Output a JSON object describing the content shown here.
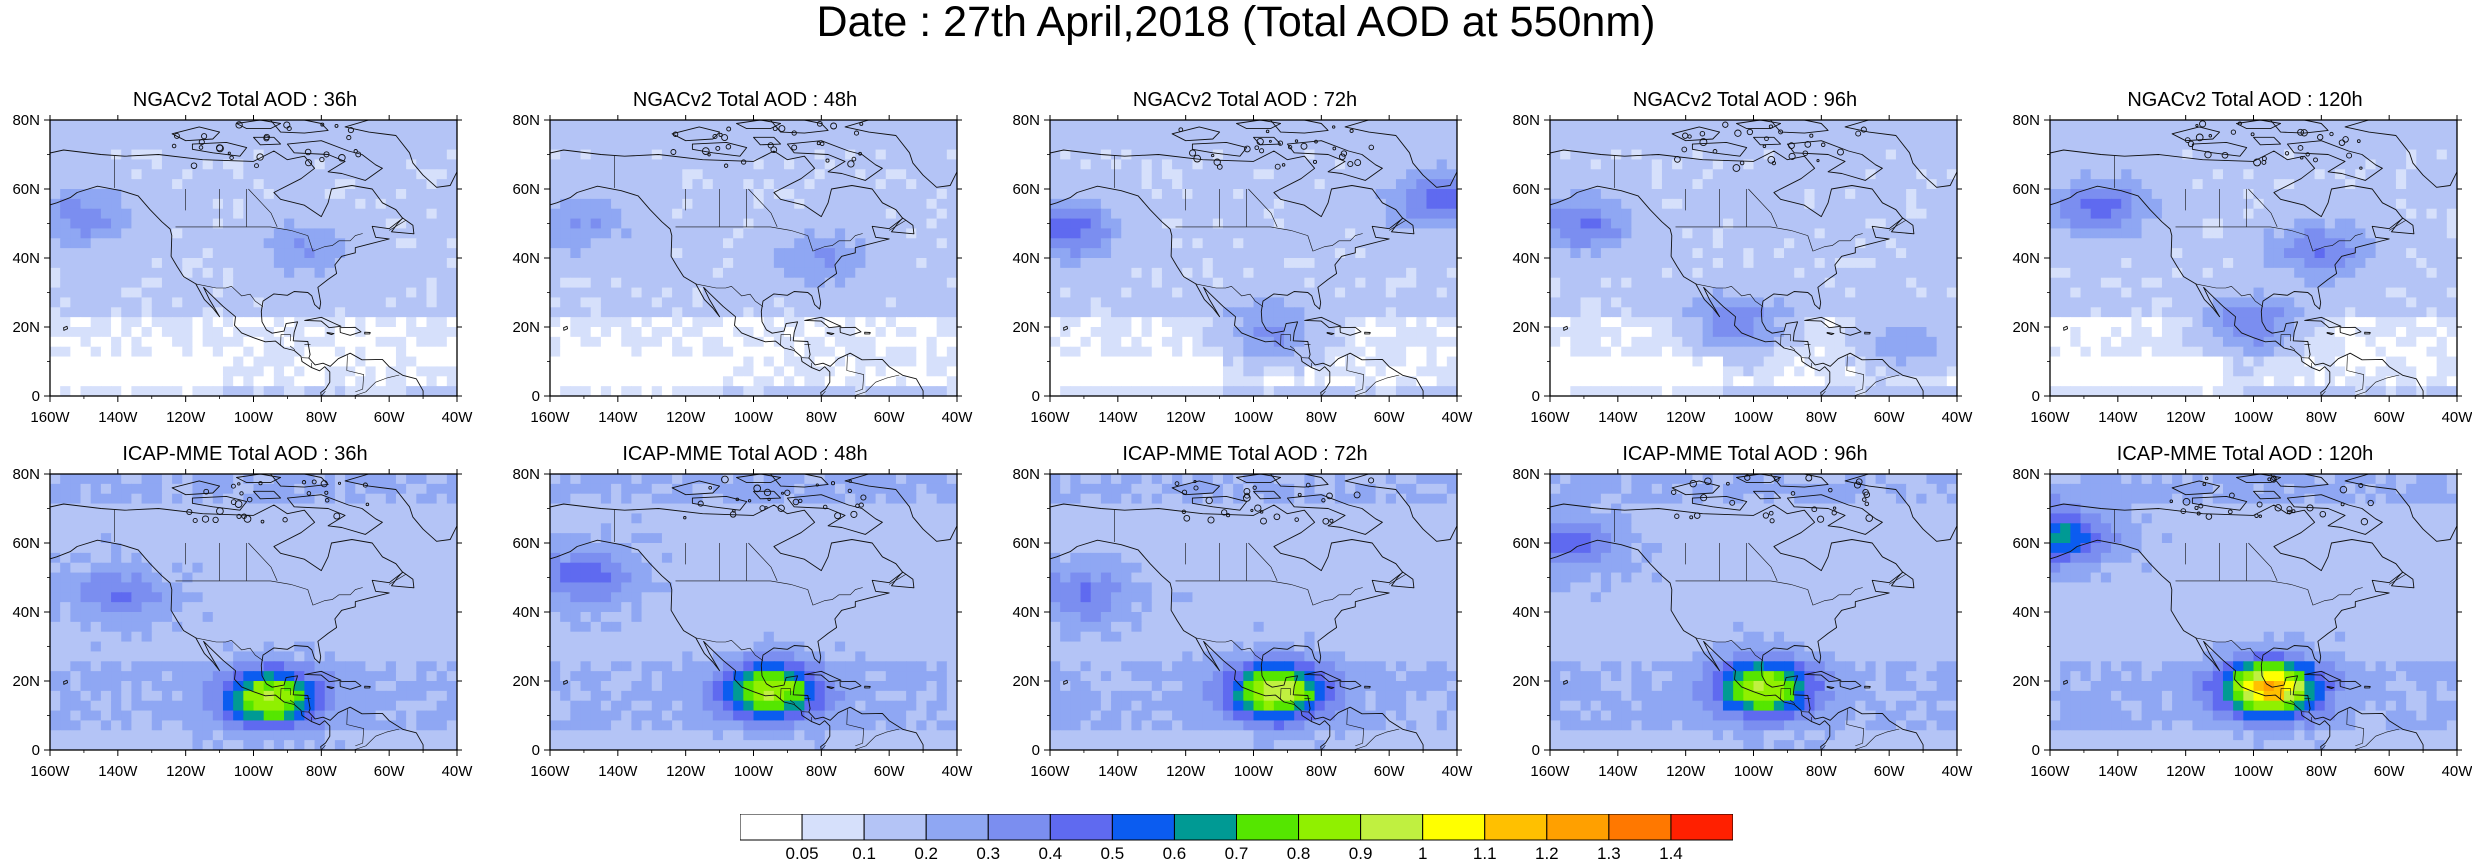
{
  "title": "Date : 27th April,2018 (Total AOD at 550nm)",
  "x_tick_labels": [
    "160W",
    "140W",
    "120W",
    "100W",
    "80W",
    "60W",
    "40W"
  ],
  "y_tick_labels": [
    "0",
    "20N",
    "40N",
    "60N",
    "80N"
  ],
  "panels": [
    {
      "title": "NGACv2 Total AOD : 36h",
      "model": "NGACv2",
      "lead": "36h",
      "hotspots": [
        {
          "lon": -150,
          "lat": 52,
          "aod": 0.35
        },
        {
          "lon": -85,
          "lat": 42,
          "aod": 0.3
        }
      ]
    },
    {
      "title": "NGACv2 Total AOD : 48h",
      "model": "NGACv2",
      "lead": "48h",
      "hotspots": [
        {
          "lon": -150,
          "lat": 50,
          "aod": 0.3
        },
        {
          "lon": -80,
          "lat": 40,
          "aod": 0.3
        }
      ]
    },
    {
      "title": "NGACv2 Total AOD : 72h",
      "model": "NGACv2",
      "lead": "72h",
      "hotspots": [
        {
          "lon": -155,
          "lat": 48,
          "aod": 0.45
        },
        {
          "lon": -45,
          "lat": 57,
          "aod": 0.45
        },
        {
          "lon": -95,
          "lat": 18,
          "aod": 0.4
        }
      ]
    },
    {
      "title": "NGACv2 Total AOD : 96h",
      "model": "NGACv2",
      "lead": "96h",
      "hotspots": [
        {
          "lon": -150,
          "lat": 50,
          "aod": 0.4
        },
        {
          "lon": -105,
          "lat": 20,
          "aod": 0.45
        },
        {
          "lon": -55,
          "lat": 15,
          "aod": 0.35
        }
      ]
    },
    {
      "title": "NGACv2 Total AOD : 120h",
      "model": "NGACv2",
      "lead": "120h",
      "hotspots": [
        {
          "lon": -145,
          "lat": 55,
          "aod": 0.45
        },
        {
          "lon": -100,
          "lat": 20,
          "aod": 0.45
        },
        {
          "lon": -80,
          "lat": 42,
          "aod": 0.4
        }
      ]
    },
    {
      "title": "ICAP-MME Total AOD : 36h",
      "model": "ICAP-MME",
      "lead": "36h",
      "hotspots": [
        {
          "lon": -95,
          "lat": 15,
          "aod": 0.85
        },
        {
          "lon": -140,
          "lat": 45,
          "aod": 0.35
        }
      ]
    },
    {
      "title": "ICAP-MME Total AOD : 48h",
      "model": "ICAP-MME",
      "lead": "48h",
      "hotspots": [
        {
          "lon": -95,
          "lat": 17,
          "aod": 0.85
        },
        {
          "lon": -150,
          "lat": 50,
          "aod": 0.4
        }
      ]
    },
    {
      "title": "ICAP-MME Total AOD : 72h",
      "model": "ICAP-MME",
      "lead": "72h",
      "hotspots": [
        {
          "lon": -93,
          "lat": 17,
          "aod": 0.9
        },
        {
          "lon": -150,
          "lat": 45,
          "aod": 0.35
        }
      ]
    },
    {
      "title": "ICAP-MME Total AOD : 96h",
      "model": "ICAP-MME",
      "lead": "96h",
      "hotspots": [
        {
          "lon": -97,
          "lat": 18,
          "aod": 0.85
        },
        {
          "lon": -155,
          "lat": 60,
          "aod": 0.4
        }
      ]
    },
    {
      "title": "ICAP-MME Total AOD : 120h",
      "model": "ICAP-MME",
      "lead": "120h",
      "hotspots": [
        {
          "lon": -95,
          "lat": 18,
          "aod": 1.1
        },
        {
          "lon": -157,
          "lat": 62,
          "aod": 0.6
        }
      ]
    }
  ],
  "colorbar": {
    "labels": [
      "0.05",
      "0.1",
      "0.2",
      "0.3",
      "0.4",
      "0.5",
      "0.6",
      "0.7",
      "0.8",
      "0.9",
      "1",
      "1.1",
      "1.2",
      "1.3",
      "1.4"
    ],
    "colors": [
      "#ffffff",
      "#d6e0fb",
      "#b4c4f6",
      "#8fa7f3",
      "#7b8ef0",
      "#5f6af0",
      "#0b5cf0",
      "#009a94",
      "#55e600",
      "#90f000",
      "#c0f040",
      "#ffff00",
      "#ffc000",
      "#ffa000",
      "#ff7800",
      "#ff2000"
    ]
  }
}
